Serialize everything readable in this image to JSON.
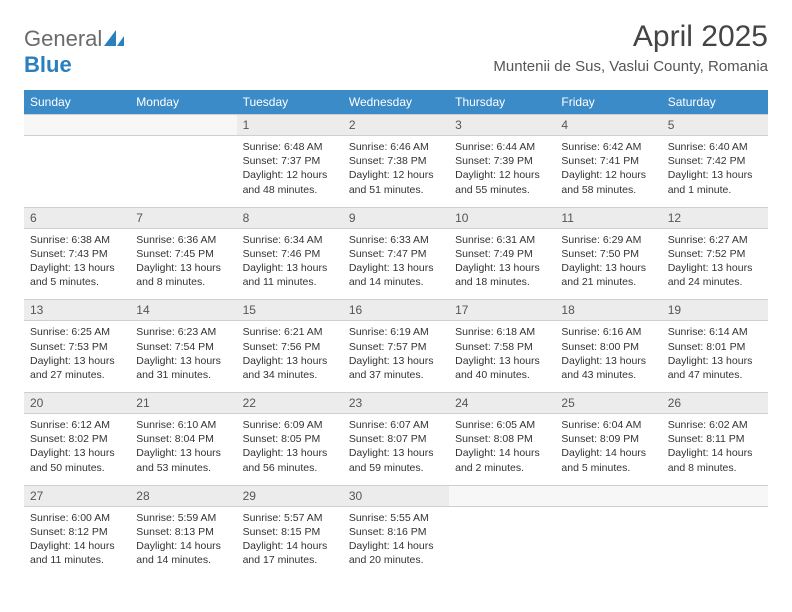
{
  "brand": {
    "part1": "General",
    "part2": "Blue"
  },
  "title": "April 2025",
  "location": "Muntenii de Sus, Vaslui County, Romania",
  "colors": {
    "header_bg": "#3b8bc8",
    "header_text": "#ffffff",
    "daynum_bg": "#ececec",
    "border": "#cfcfcf",
    "logo_gray": "#6b6b6b",
    "logo_blue": "#2a7fbf"
  },
  "weekdays": [
    "Sunday",
    "Monday",
    "Tuesday",
    "Wednesday",
    "Thursday",
    "Friday",
    "Saturday"
  ],
  "weeks": [
    {
      "nums": [
        "",
        "",
        "1",
        "2",
        "3",
        "4",
        "5"
      ],
      "cells": [
        null,
        null,
        {
          "sunrise": "Sunrise: 6:48 AM",
          "sunset": "Sunset: 7:37 PM",
          "daylight": "Daylight: 12 hours and 48 minutes."
        },
        {
          "sunrise": "Sunrise: 6:46 AM",
          "sunset": "Sunset: 7:38 PM",
          "daylight": "Daylight: 12 hours and 51 minutes."
        },
        {
          "sunrise": "Sunrise: 6:44 AM",
          "sunset": "Sunset: 7:39 PM",
          "daylight": "Daylight: 12 hours and 55 minutes."
        },
        {
          "sunrise": "Sunrise: 6:42 AM",
          "sunset": "Sunset: 7:41 PM",
          "daylight": "Daylight: 12 hours and 58 minutes."
        },
        {
          "sunrise": "Sunrise: 6:40 AM",
          "sunset": "Sunset: 7:42 PM",
          "daylight": "Daylight: 13 hours and 1 minute."
        }
      ]
    },
    {
      "nums": [
        "6",
        "7",
        "8",
        "9",
        "10",
        "11",
        "12"
      ],
      "cells": [
        {
          "sunrise": "Sunrise: 6:38 AM",
          "sunset": "Sunset: 7:43 PM",
          "daylight": "Daylight: 13 hours and 5 minutes."
        },
        {
          "sunrise": "Sunrise: 6:36 AM",
          "sunset": "Sunset: 7:45 PM",
          "daylight": "Daylight: 13 hours and 8 minutes."
        },
        {
          "sunrise": "Sunrise: 6:34 AM",
          "sunset": "Sunset: 7:46 PM",
          "daylight": "Daylight: 13 hours and 11 minutes."
        },
        {
          "sunrise": "Sunrise: 6:33 AM",
          "sunset": "Sunset: 7:47 PM",
          "daylight": "Daylight: 13 hours and 14 minutes."
        },
        {
          "sunrise": "Sunrise: 6:31 AM",
          "sunset": "Sunset: 7:49 PM",
          "daylight": "Daylight: 13 hours and 18 minutes."
        },
        {
          "sunrise": "Sunrise: 6:29 AM",
          "sunset": "Sunset: 7:50 PM",
          "daylight": "Daylight: 13 hours and 21 minutes."
        },
        {
          "sunrise": "Sunrise: 6:27 AM",
          "sunset": "Sunset: 7:52 PM",
          "daylight": "Daylight: 13 hours and 24 minutes."
        }
      ]
    },
    {
      "nums": [
        "13",
        "14",
        "15",
        "16",
        "17",
        "18",
        "19"
      ],
      "cells": [
        {
          "sunrise": "Sunrise: 6:25 AM",
          "sunset": "Sunset: 7:53 PM",
          "daylight": "Daylight: 13 hours and 27 minutes."
        },
        {
          "sunrise": "Sunrise: 6:23 AM",
          "sunset": "Sunset: 7:54 PM",
          "daylight": "Daylight: 13 hours and 31 minutes."
        },
        {
          "sunrise": "Sunrise: 6:21 AM",
          "sunset": "Sunset: 7:56 PM",
          "daylight": "Daylight: 13 hours and 34 minutes."
        },
        {
          "sunrise": "Sunrise: 6:19 AM",
          "sunset": "Sunset: 7:57 PM",
          "daylight": "Daylight: 13 hours and 37 minutes."
        },
        {
          "sunrise": "Sunrise: 6:18 AM",
          "sunset": "Sunset: 7:58 PM",
          "daylight": "Daylight: 13 hours and 40 minutes."
        },
        {
          "sunrise": "Sunrise: 6:16 AM",
          "sunset": "Sunset: 8:00 PM",
          "daylight": "Daylight: 13 hours and 43 minutes."
        },
        {
          "sunrise": "Sunrise: 6:14 AM",
          "sunset": "Sunset: 8:01 PM",
          "daylight": "Daylight: 13 hours and 47 minutes."
        }
      ]
    },
    {
      "nums": [
        "20",
        "21",
        "22",
        "23",
        "24",
        "25",
        "26"
      ],
      "cells": [
        {
          "sunrise": "Sunrise: 6:12 AM",
          "sunset": "Sunset: 8:02 PM",
          "daylight": "Daylight: 13 hours and 50 minutes."
        },
        {
          "sunrise": "Sunrise: 6:10 AM",
          "sunset": "Sunset: 8:04 PM",
          "daylight": "Daylight: 13 hours and 53 minutes."
        },
        {
          "sunrise": "Sunrise: 6:09 AM",
          "sunset": "Sunset: 8:05 PM",
          "daylight": "Daylight: 13 hours and 56 minutes."
        },
        {
          "sunrise": "Sunrise: 6:07 AM",
          "sunset": "Sunset: 8:07 PM",
          "daylight": "Daylight: 13 hours and 59 minutes."
        },
        {
          "sunrise": "Sunrise: 6:05 AM",
          "sunset": "Sunset: 8:08 PM",
          "daylight": "Daylight: 14 hours and 2 minutes."
        },
        {
          "sunrise": "Sunrise: 6:04 AM",
          "sunset": "Sunset: 8:09 PM",
          "daylight": "Daylight: 14 hours and 5 minutes."
        },
        {
          "sunrise": "Sunrise: 6:02 AM",
          "sunset": "Sunset: 8:11 PM",
          "daylight": "Daylight: 14 hours and 8 minutes."
        }
      ]
    },
    {
      "nums": [
        "27",
        "28",
        "29",
        "30",
        "",
        "",
        ""
      ],
      "cells": [
        {
          "sunrise": "Sunrise: 6:00 AM",
          "sunset": "Sunset: 8:12 PM",
          "daylight": "Daylight: 14 hours and 11 minutes."
        },
        {
          "sunrise": "Sunrise: 5:59 AM",
          "sunset": "Sunset: 8:13 PM",
          "daylight": "Daylight: 14 hours and 14 minutes."
        },
        {
          "sunrise": "Sunrise: 5:57 AM",
          "sunset": "Sunset: 8:15 PM",
          "daylight": "Daylight: 14 hours and 17 minutes."
        },
        {
          "sunrise": "Sunrise: 5:55 AM",
          "sunset": "Sunset: 8:16 PM",
          "daylight": "Daylight: 14 hours and 20 minutes."
        },
        null,
        null,
        null
      ]
    }
  ]
}
